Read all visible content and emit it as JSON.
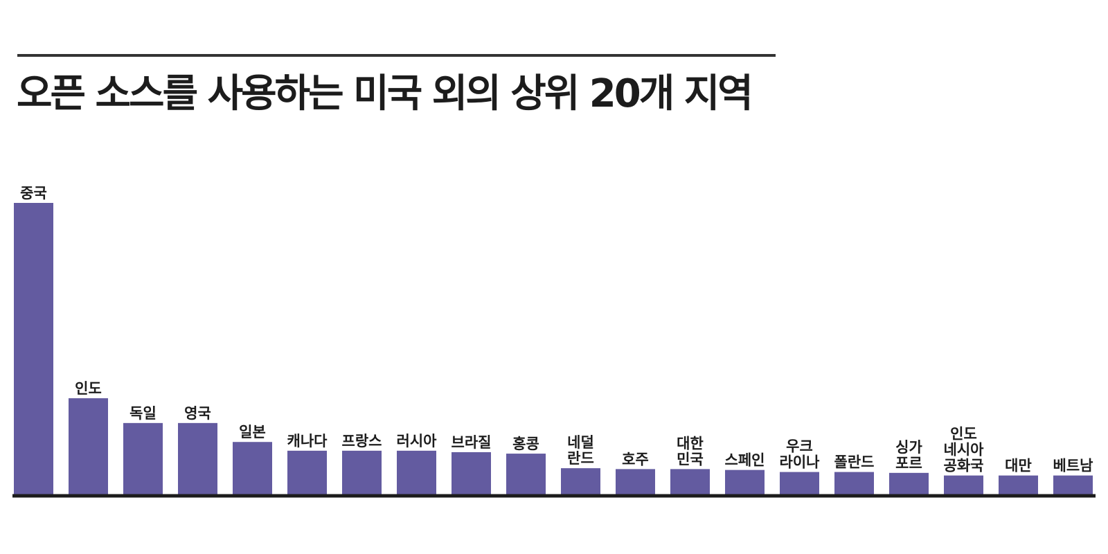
{
  "chart_data": {
    "type": "bar",
    "title": "오픈 소스를 사용하는 미국 외의 상위 20개 지역",
    "xlabel": "",
    "ylabel": "",
    "categories": [
      [
        "중국"
      ],
      [
        "인도"
      ],
      [
        "독일"
      ],
      [
        "영국"
      ],
      [
        "일본"
      ],
      [
        "캐나다"
      ],
      [
        "프랑스"
      ],
      [
        "러시아"
      ],
      [
        "브라질"
      ],
      [
        "홍콩"
      ],
      [
        "네덜",
        "란드"
      ],
      [
        "호주"
      ],
      [
        "대한",
        "민국"
      ],
      [
        "스페인"
      ],
      [
        "우크",
        "라이나"
      ],
      [
        "폴란드"
      ],
      [
        "싱가",
        "포르"
      ],
      [
        "인도",
        "네시아",
        "공화국"
      ],
      [
        "대만"
      ],
      [
        "베트남"
      ]
    ],
    "values": [
      100,
      33,
      24.5,
      24.5,
      18,
      15,
      15,
      15,
      14.5,
      14,
      9,
      8.7,
      8.7,
      8.4,
      7.7,
      7.7,
      7.4,
      6.5,
      6.5,
      6.5
    ],
    "bar_color": "#635ba0",
    "axis_color": "#1c1c1c",
    "title_color": "#1c1c1c"
  }
}
